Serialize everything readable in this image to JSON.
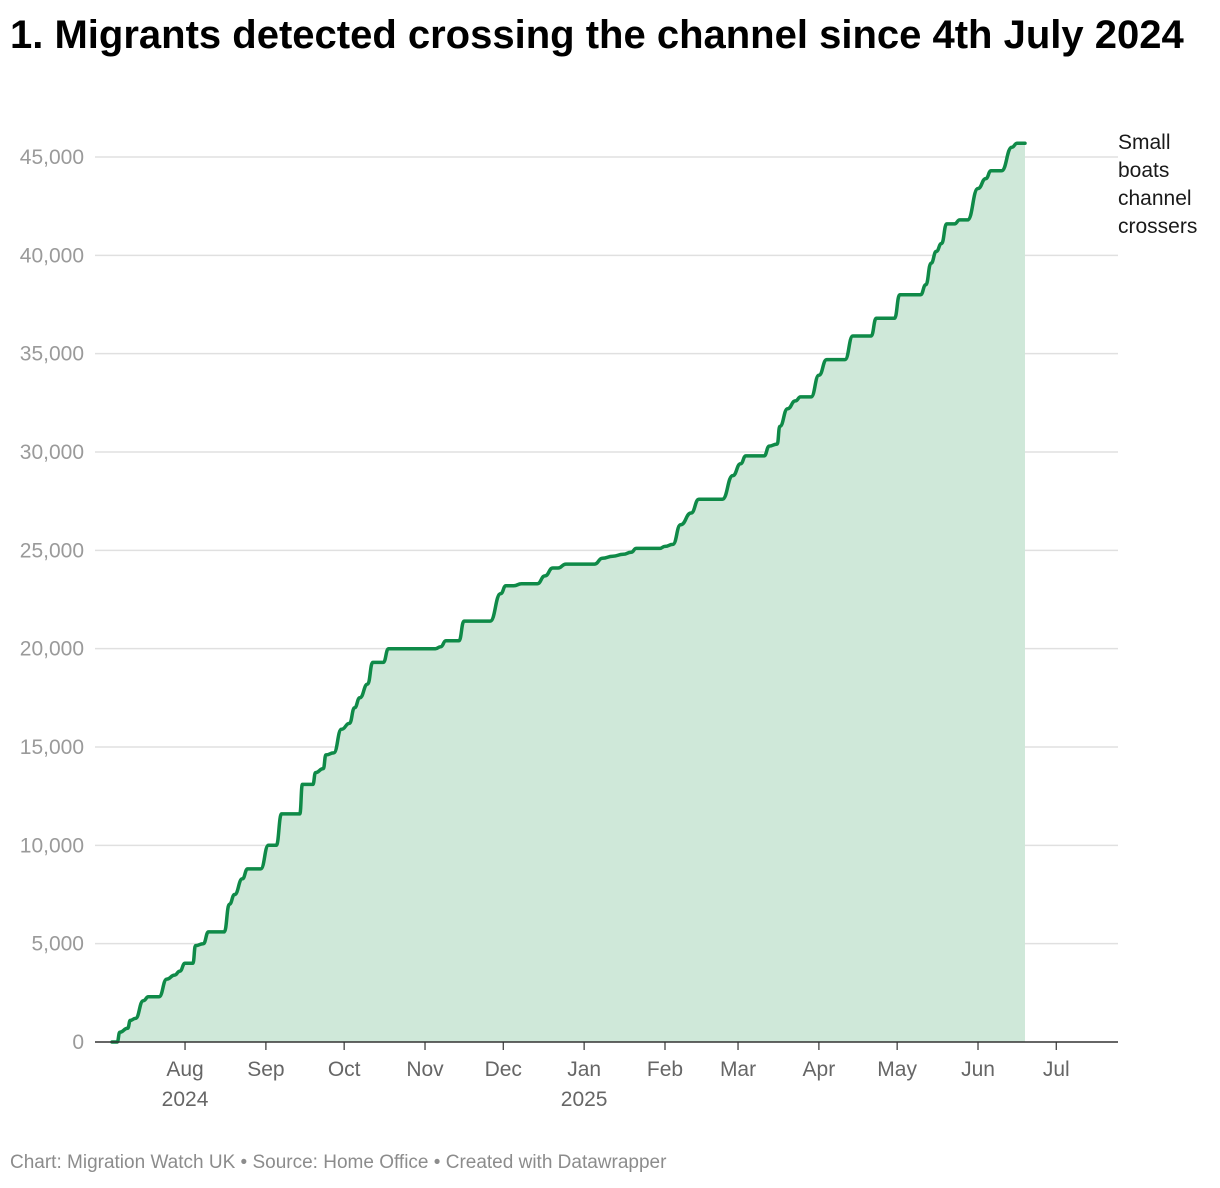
{
  "title": "1. Migrants detected crossing the channel since 4th July 2024",
  "footer": {
    "chart_credit": "Chart: Migration Watch UK",
    "separator": "•",
    "source": "Source: Home Office",
    "created_with": "Created with Datawrapper"
  },
  "colors": {
    "line": "#0f8a48",
    "area": "#cfe8d9",
    "grid": "#e0e0e0",
    "baseline": "#333333"
  },
  "chart_data": {
    "type": "area",
    "title": "1. Migrants detected crossing the channel since 4th July 2024",
    "xlabel": "",
    "ylabel": "",
    "ylim": [
      0,
      45000
    ],
    "yticks": [
      0,
      5000,
      10000,
      15000,
      20000,
      25000,
      30000,
      35000,
      40000,
      45000
    ],
    "ytick_labels": [
      "0",
      "5,000",
      "10,000",
      "15,000",
      "20,000",
      "25,000",
      "30,000",
      "35,000",
      "40,000",
      "45,000"
    ],
    "x_start": "2024-07-04",
    "x_end": "2025-07-17",
    "xticks": [
      {
        "date": "2024-08-01",
        "label": "Aug",
        "sub": "2024"
      },
      {
        "date": "2024-09-01",
        "label": "Sep",
        "sub": ""
      },
      {
        "date": "2024-10-01",
        "label": "Oct",
        "sub": ""
      },
      {
        "date": "2024-11-01",
        "label": "Nov",
        "sub": ""
      },
      {
        "date": "2024-12-01",
        "label": "Dec",
        "sub": ""
      },
      {
        "date": "2025-01-01",
        "label": "Jan",
        "sub": "2025"
      },
      {
        "date": "2025-02-01",
        "label": "Feb",
        "sub": ""
      },
      {
        "date": "2025-03-01",
        "label": "Mar",
        "sub": ""
      },
      {
        "date": "2025-04-01",
        "label": "Apr",
        "sub": ""
      },
      {
        "date": "2025-05-01",
        "label": "May",
        "sub": ""
      },
      {
        "date": "2025-06-01",
        "label": "Jun",
        "sub": ""
      },
      {
        "date": "2025-07-01",
        "label": "Jul",
        "sub": ""
      }
    ],
    "series": [
      {
        "name": "Small boats channel crossers",
        "label_lines": [
          "Small",
          "boats",
          "channel",
          "crossers"
        ],
        "points": [
          [
            "2024-07-04",
            0
          ],
          [
            "2024-07-06",
            0
          ],
          [
            "2024-07-07",
            500
          ],
          [
            "2024-07-10",
            700
          ],
          [
            "2024-07-11",
            1100
          ],
          [
            "2024-07-13",
            1200
          ],
          [
            "2024-07-16",
            2100
          ],
          [
            "2024-07-18",
            2300
          ],
          [
            "2024-07-22",
            2300
          ],
          [
            "2024-07-25",
            3200
          ],
          [
            "2024-07-28",
            3400
          ],
          [
            "2024-07-30",
            3600
          ],
          [
            "2024-08-01",
            4000
          ],
          [
            "2024-08-04",
            4000
          ],
          [
            "2024-08-05",
            4900
          ],
          [
            "2024-08-08",
            5000
          ],
          [
            "2024-08-10",
            5600
          ],
          [
            "2024-08-16",
            5600
          ],
          [
            "2024-08-18",
            7000
          ],
          [
            "2024-08-20",
            7500
          ],
          [
            "2024-08-23",
            8300
          ],
          [
            "2024-08-25",
            8800
          ],
          [
            "2024-08-30",
            8800
          ],
          [
            "2024-09-02",
            10000
          ],
          [
            "2024-09-05",
            10000
          ],
          [
            "2024-09-07",
            11600
          ],
          [
            "2024-09-10",
            11600
          ],
          [
            "2024-09-14",
            11600
          ],
          [
            "2024-09-15",
            13100
          ],
          [
            "2024-09-19",
            13100
          ],
          [
            "2024-09-20",
            13700
          ],
          [
            "2024-09-23",
            13900
          ],
          [
            "2024-09-24",
            14600
          ],
          [
            "2024-09-27",
            14700
          ],
          [
            "2024-09-30",
            15900
          ],
          [
            "2024-10-03",
            16200
          ],
          [
            "2024-10-05",
            17000
          ],
          [
            "2024-10-07",
            17500
          ],
          [
            "2024-10-10",
            18200
          ],
          [
            "2024-10-12",
            19300
          ],
          [
            "2024-10-16",
            19300
          ],
          [
            "2024-10-18",
            20000
          ],
          [
            "2024-10-24",
            20000
          ],
          [
            "2024-11-01",
            20000
          ],
          [
            "2024-11-05",
            20000
          ],
          [
            "2024-11-07",
            20100
          ],
          [
            "2024-11-09",
            20400
          ],
          [
            "2024-11-14",
            20400
          ],
          [
            "2024-11-16",
            21400
          ],
          [
            "2024-11-26",
            21400
          ],
          [
            "2024-11-30",
            22800
          ],
          [
            "2024-12-02",
            23200
          ],
          [
            "2024-12-05",
            23200
          ],
          [
            "2024-12-08",
            23300
          ],
          [
            "2024-12-14",
            23300
          ],
          [
            "2024-12-17",
            23700
          ],
          [
            "2024-12-20",
            24100
          ],
          [
            "2024-12-22",
            24100
          ],
          [
            "2024-12-25",
            24300
          ],
          [
            "2025-01-02",
            24300
          ],
          [
            "2025-01-05",
            24300
          ],
          [
            "2025-01-08",
            24600
          ],
          [
            "2025-01-12",
            24700
          ],
          [
            "2025-01-16",
            24800
          ],
          [
            "2025-01-19",
            24900
          ],
          [
            "2025-01-21",
            25100
          ],
          [
            "2025-01-30",
            25100
          ],
          [
            "2025-02-01",
            25200
          ],
          [
            "2025-02-04",
            25300
          ],
          [
            "2025-02-07",
            26300
          ],
          [
            "2025-02-11",
            26900
          ],
          [
            "2025-02-14",
            27600
          ],
          [
            "2025-02-23",
            27600
          ],
          [
            "2025-02-27",
            28800
          ],
          [
            "2025-03-02",
            29400
          ],
          [
            "2025-03-04",
            29800
          ],
          [
            "2025-03-11",
            29800
          ],
          [
            "2025-03-13",
            30300
          ],
          [
            "2025-03-16",
            30400
          ],
          [
            "2025-03-17",
            31300
          ],
          [
            "2025-03-20",
            32200
          ],
          [
            "2025-03-23",
            32600
          ],
          [
            "2025-03-25",
            32800
          ],
          [
            "2025-03-29",
            32800
          ],
          [
            "2025-04-01",
            33900
          ],
          [
            "2025-04-04",
            34700
          ],
          [
            "2025-04-11",
            34700
          ],
          [
            "2025-04-14",
            35900
          ],
          [
            "2025-04-21",
            35900
          ],
          [
            "2025-04-23",
            36800
          ],
          [
            "2025-04-30",
            36800
          ],
          [
            "2025-05-02",
            38000
          ],
          [
            "2025-05-10",
            38000
          ],
          [
            "2025-05-12",
            38500
          ],
          [
            "2025-05-14",
            39600
          ],
          [
            "2025-05-16",
            40200
          ],
          [
            "2025-05-18",
            40600
          ],
          [
            "2025-05-20",
            41600
          ],
          [
            "2025-05-23",
            41600
          ],
          [
            "2025-05-25",
            41800
          ],
          [
            "2025-05-28",
            41800
          ],
          [
            "2025-06-01",
            43400
          ],
          [
            "2025-06-04",
            43900
          ],
          [
            "2025-06-06",
            44300
          ],
          [
            "2025-06-10",
            44300
          ],
          [
            "2025-06-14",
            45500
          ],
          [
            "2025-06-16",
            45700
          ],
          [
            "2025-06-19",
            45700
          ]
        ]
      }
    ]
  }
}
